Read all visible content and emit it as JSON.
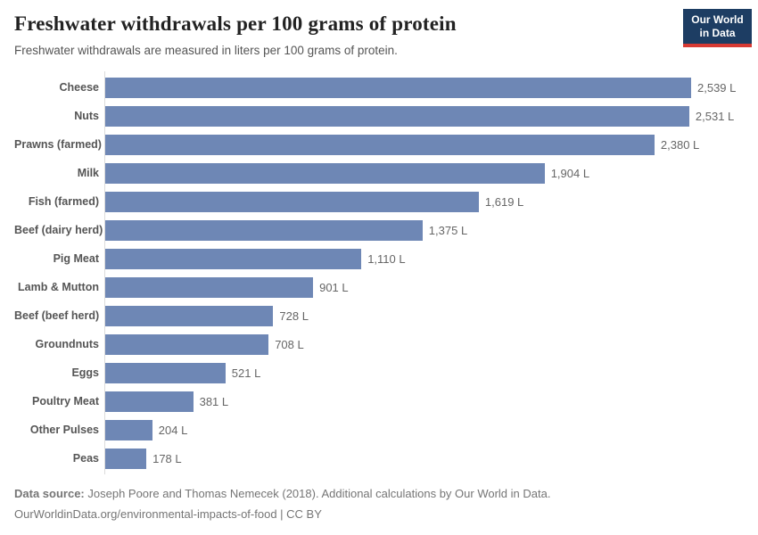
{
  "header": {
    "title": "Freshwater withdrawals per 100 grams of protein",
    "subtitle": "Freshwater withdrawals are measured in liters per 100 grams of protein."
  },
  "logo": {
    "line1": "Our World",
    "line2": "in Data",
    "bg_color": "#1d3d63",
    "accent_color": "#d73a33",
    "text_color": "#ffffff"
  },
  "chart_data": {
    "type": "bar",
    "orientation": "horizontal",
    "title": "Freshwater withdrawals per 100 grams of protein",
    "subtitle": "Freshwater withdrawals are measured in liters per 100 grams of protein.",
    "unit": "L",
    "categories": [
      "Cheese",
      "Nuts",
      "Prawns (farmed)",
      "Milk",
      "Fish (farmed)",
      "Beef (dairy herd)",
      "Pig Meat",
      "Lamb & Mutton",
      "Beef (beef herd)",
      "Groundnuts",
      "Eggs",
      "Poultry Meat",
      "Other Pulses",
      "Peas"
    ],
    "values": [
      2539,
      2531,
      2380,
      1904,
      1619,
      1375,
      1110,
      901,
      728,
      708,
      521,
      381,
      204,
      178
    ],
    "value_labels": [
      "2,539 L",
      "2,531 L",
      "2,380 L",
      "1,904 L",
      "1,619 L",
      "1,375 L",
      "1,110 L",
      "901 L",
      "728 L",
      "708 L",
      "521 L",
      "381 L",
      "204 L",
      "178 L"
    ],
    "bar_color": "#6e87b5",
    "xlim": [
      0,
      2539
    ],
    "grid": false,
    "legend": "none",
    "value_label_position": "end-of-bar"
  },
  "footer": {
    "datasource_label": "Data source:",
    "datasource_text": "Joseph Poore and Thomas Nemecek (2018). Additional calculations by Our World in Data.",
    "citation_line": "OurWorldinData.org/environmental-impacts-of-food | CC BY"
  }
}
